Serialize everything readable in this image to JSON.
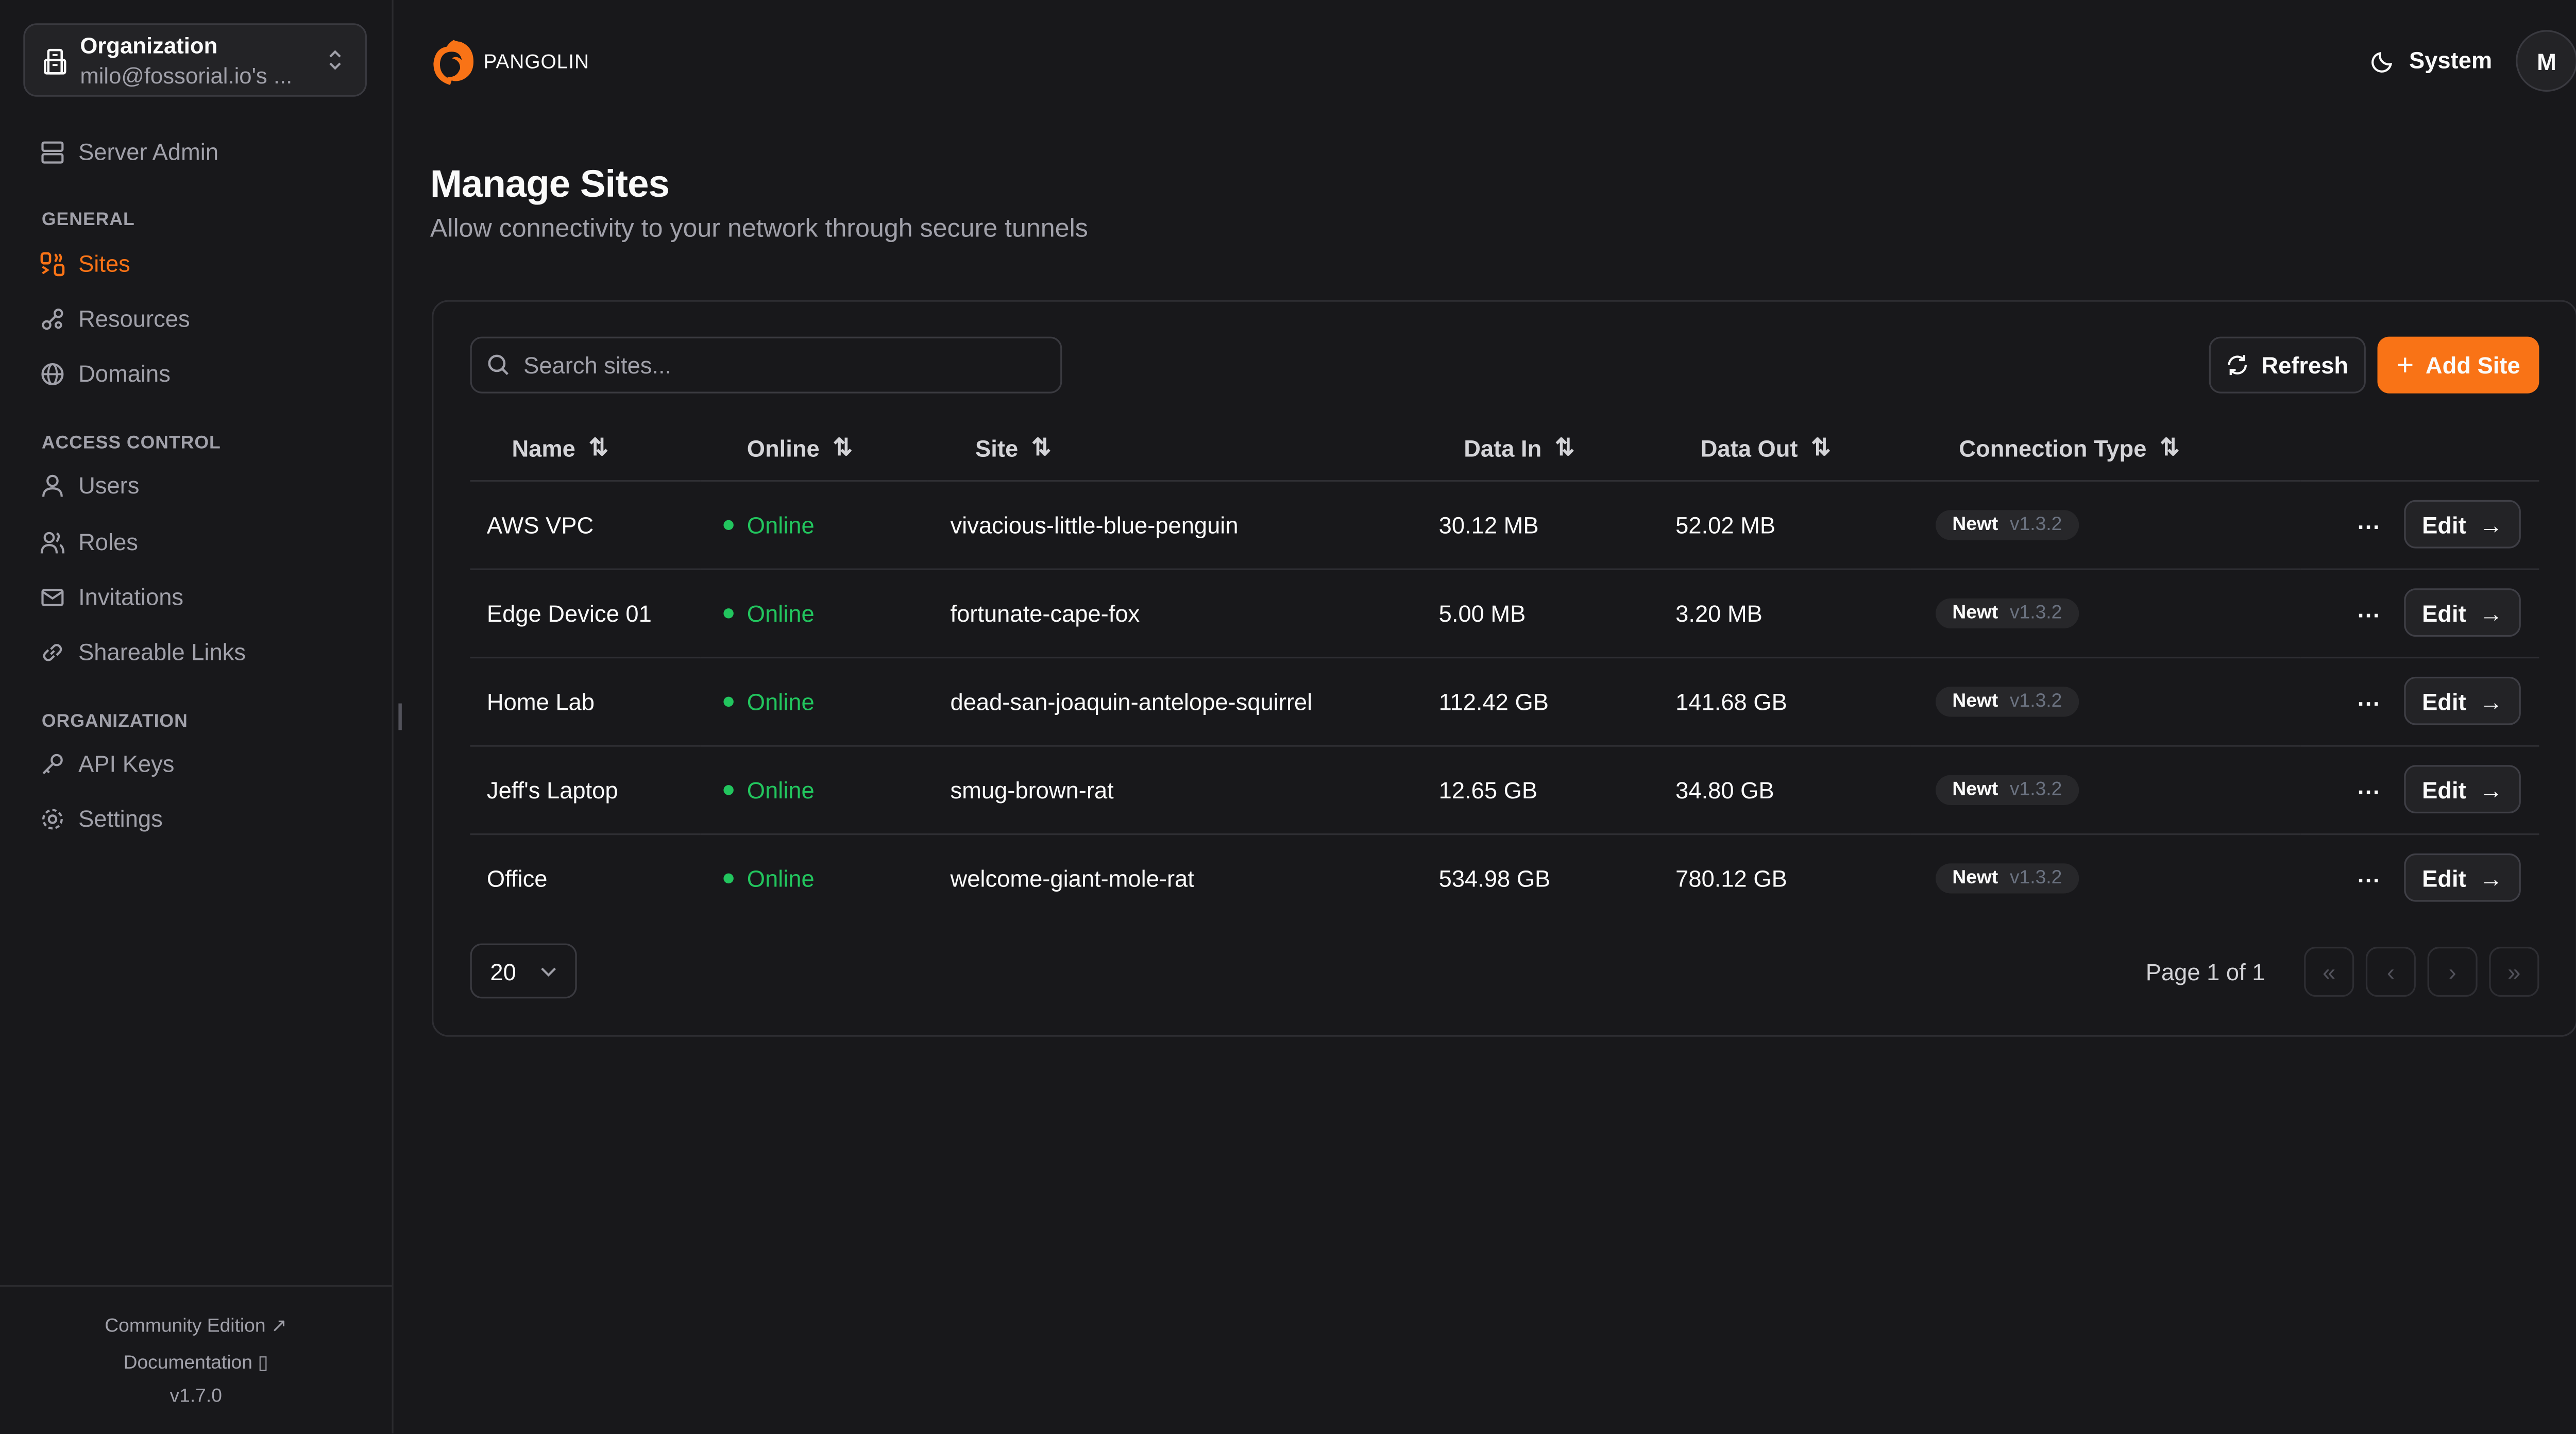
{
  "brand": {
    "name": "PANGOLIN",
    "accent": "#f97316"
  },
  "org_switcher": {
    "label": "Organization",
    "value": "milo@fossorial.io's ..."
  },
  "sidebar": {
    "server_admin": "Server Admin",
    "sections": [
      {
        "title": "GENERAL",
        "items": [
          {
            "label": "Sites",
            "icon": "sites-icon",
            "active": true
          },
          {
            "label": "Resources",
            "icon": "resources-icon"
          },
          {
            "label": "Domains",
            "icon": "globe-icon"
          }
        ]
      },
      {
        "title": "ACCESS CONTROL",
        "items": [
          {
            "label": "Users",
            "icon": "user-icon"
          },
          {
            "label": "Roles",
            "icon": "users-icon"
          },
          {
            "label": "Invitations",
            "icon": "mail-icon"
          },
          {
            "label": "Shareable Links",
            "icon": "link-icon"
          }
        ]
      },
      {
        "title": "ORGANIZATION",
        "items": [
          {
            "label": "API Keys",
            "icon": "key-icon"
          },
          {
            "label": "Settings",
            "icon": "gear-icon"
          }
        ]
      }
    ],
    "footer": {
      "community": "Community Edition",
      "docs": "Documentation",
      "version": "v1.7.0"
    }
  },
  "header": {
    "theme": "System",
    "avatar": "M"
  },
  "page": {
    "title": "Manage Sites",
    "subtitle": "Allow connectivity to your network through secure tunnels"
  },
  "toolbar": {
    "search_placeholder": "Search sites...",
    "refresh": "Refresh",
    "add": "Add Site"
  },
  "table": {
    "columns": [
      "Name",
      "Online",
      "Site",
      "Data In",
      "Data Out",
      "Connection Type"
    ],
    "rows": [
      {
        "name": "AWS VPC",
        "status": "Online",
        "site": "vivacious-little-blue-penguin",
        "data_in": "30.12 MB",
        "data_out": "52.02 MB",
        "type": "Newt",
        "version": "v1.3.2"
      },
      {
        "name": "Edge Device 01",
        "status": "Online",
        "site": "fortunate-cape-fox",
        "data_in": "5.00 MB",
        "data_out": "3.20 MB",
        "type": "Newt",
        "version": "v1.3.2"
      },
      {
        "name": "Home Lab",
        "status": "Online",
        "site": "dead-san-joaquin-antelope-squirrel",
        "data_in": "112.42 GB",
        "data_out": "141.68 GB",
        "type": "Newt",
        "version": "v1.3.2"
      },
      {
        "name": "Jeff's Laptop",
        "status": "Online",
        "site": "smug-brown-rat",
        "data_in": "12.65 GB",
        "data_out": "34.80 GB",
        "type": "Newt",
        "version": "v1.3.2"
      },
      {
        "name": "Office",
        "status": "Online",
        "site": "welcome-giant-mole-rat",
        "data_in": "534.98 GB",
        "data_out": "780.12 GB",
        "type": "Newt",
        "version": "v1.3.2"
      }
    ],
    "edit_label": "Edit"
  },
  "pagination": {
    "page_size": "20",
    "page_text": "Page 1 of 1"
  }
}
